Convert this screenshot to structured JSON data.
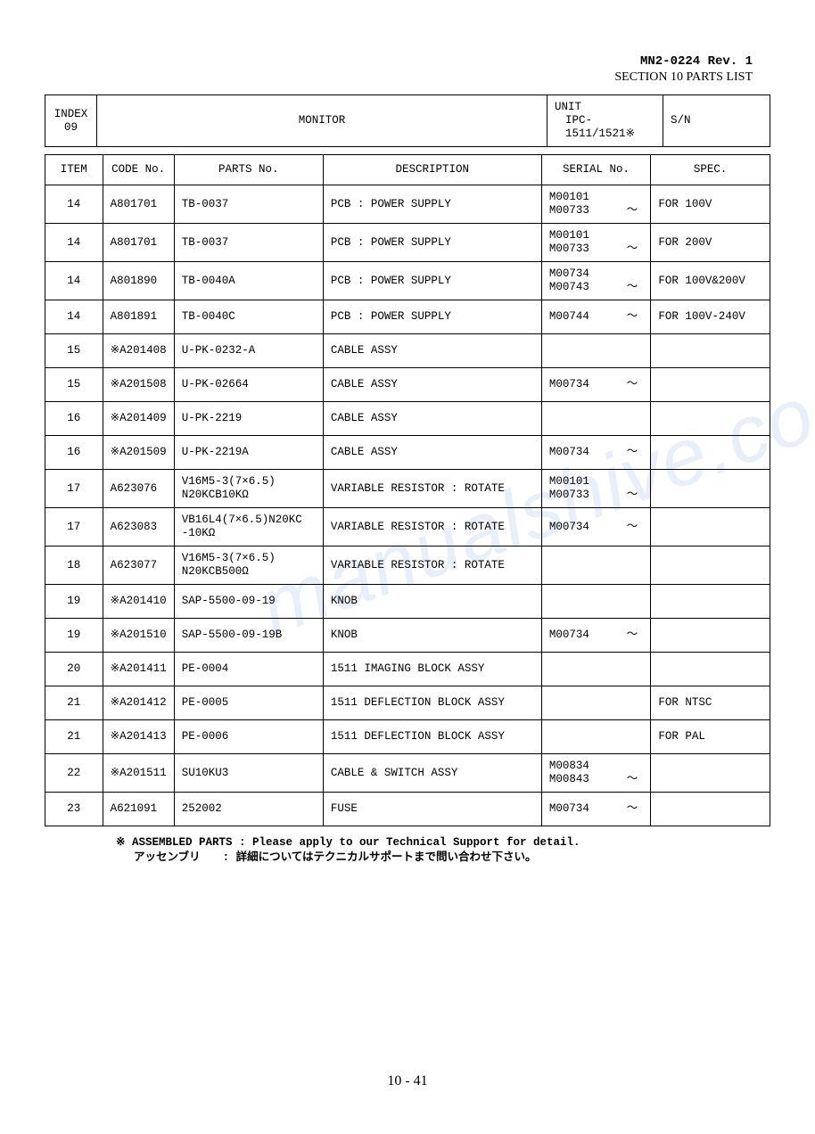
{
  "doc": {
    "rev_line": "MN2-0224 Rev. 1",
    "section_line": "SECTION 10   PARTS LIST",
    "page_number": "10  -  41"
  },
  "top_header": {
    "index_label": "INDEX\n09",
    "monitor_label": "MONITOR",
    "unit_label": "UNIT",
    "unit_value": "IPC-1511/1521※",
    "sn_label": "S/N"
  },
  "columns": {
    "item": "ITEM",
    "code": "CODE No.",
    "parts": "PARTS No.",
    "desc": "DESCRIPTION",
    "serial": "SERIAL No.",
    "spec": "SPEC."
  },
  "rows": [
    {
      "item": "14",
      "code": "A801701",
      "parts": "TB-0037",
      "desc": "PCB : POWER SUPPLY",
      "serial": "M00101\nM00733",
      "tilde": true,
      "spec": "FOR  100V"
    },
    {
      "item": "14",
      "code": "A801701",
      "parts": "TB-0037",
      "desc": "PCB : POWER SUPPLY",
      "serial": "M00101\nM00733",
      "tilde": true,
      "spec": "FOR  200V"
    },
    {
      "item": "14",
      "code": "A801890",
      "parts": "TB-0040A",
      "desc": "PCB : POWER SUPPLY",
      "serial": "M00734\nM00743",
      "tilde": true,
      "spec": "FOR 100V&200V"
    },
    {
      "item": "14",
      "code": "A801891",
      "parts": "TB-0040C",
      "desc": "PCB : POWER SUPPLY",
      "serial": "M00744",
      "tilde": true,
      "spec": "FOR 100V-240V"
    },
    {
      "item": "15",
      "code": "※A201408",
      "parts": "U-PK-0232-A",
      "desc": "CABLE  ASSY",
      "serial": "",
      "tilde": false,
      "spec": ""
    },
    {
      "item": "15",
      "code": "※A201508",
      "parts": "U-PK-02664",
      "desc": "CABLE ASSY",
      "serial": "M00734",
      "tilde": true,
      "spec": ""
    },
    {
      "item": "16",
      "code": "※A201409",
      "parts": "U-PK-2219",
      "desc": "CABLE  ASSY",
      "serial": "",
      "tilde": false,
      "spec": ""
    },
    {
      "item": "16",
      "code": "※A201509",
      "parts": "U-PK-2219A",
      "desc": "CABLE ASSY",
      "serial": "M00734",
      "tilde": true,
      "spec": ""
    },
    {
      "item": "17",
      "code": "A623076",
      "parts": "V16M5-3(7×6.5)\nN20KCB10KΩ",
      "desc": "VARIABLE RESISTOR  : ROTATE",
      "serial": "M00101\nM00733",
      "tilde": true,
      "spec": ""
    },
    {
      "item": "17",
      "code": "A623083",
      "parts": "VB16L4(7×6.5)N20KC\n-10KΩ",
      "desc": "VARIABLE RESISTOR : ROTATE",
      "serial": "M00734",
      "tilde": true,
      "spec": ""
    },
    {
      "item": "18",
      "code": "A623077",
      "parts": "V16M5-3(7×6.5)\nN20KCB500Ω",
      "desc": "VARIABLE RESISTOR  : ROTATE",
      "serial": "",
      "tilde": false,
      "spec": ""
    },
    {
      "item": "19",
      "code": "※A201410",
      "parts": "SAP-5500-09-19",
      "desc": "KNOB",
      "serial": "",
      "tilde": false,
      "spec": ""
    },
    {
      "item": "19",
      "code": "※A201510",
      "parts": "SAP-5500-09-19B",
      "desc": "KNOB",
      "serial": "M00734",
      "tilde": true,
      "spec": ""
    },
    {
      "item": "20",
      "code": "※A201411",
      "parts": "PE-0004",
      "desc": "1511 IMAGING BLOCK ASSY",
      "serial": "",
      "tilde": false,
      "spec": ""
    },
    {
      "item": "21",
      "code": "※A201412",
      "parts": "PE-0005",
      "desc": "1511 DEFLECTION BLOCK ASSY",
      "serial": "",
      "tilde": false,
      "spec": "FOR  NTSC"
    },
    {
      "item": "21",
      "code": "※A201413",
      "parts": "PE-0006",
      "desc": "1511 DEFLECTION BLOCK ASSY",
      "serial": "",
      "tilde": false,
      "spec": "FOR  PAL"
    },
    {
      "item": "22",
      "code": "※A201511",
      "parts": "SU10KU3",
      "desc": "CABLE & SWITCH ASSY",
      "serial": "M00834\nM00843",
      "tilde": true,
      "spec": ""
    },
    {
      "item": "23",
      "code": "A621091",
      "parts": "252002",
      "desc": "FUSE",
      "serial": "M00734",
      "tilde": true,
      "spec": ""
    }
  ],
  "footnote": {
    "line1": "※ ASSEMBLED PARTS : Please apply to our Technical Support for detail.",
    "line2": "　 アッセンブリ　　: 詳細についてはテクニカルサポートまで問い合わせ下さい。"
  },
  "watermark": "manualshive.com"
}
